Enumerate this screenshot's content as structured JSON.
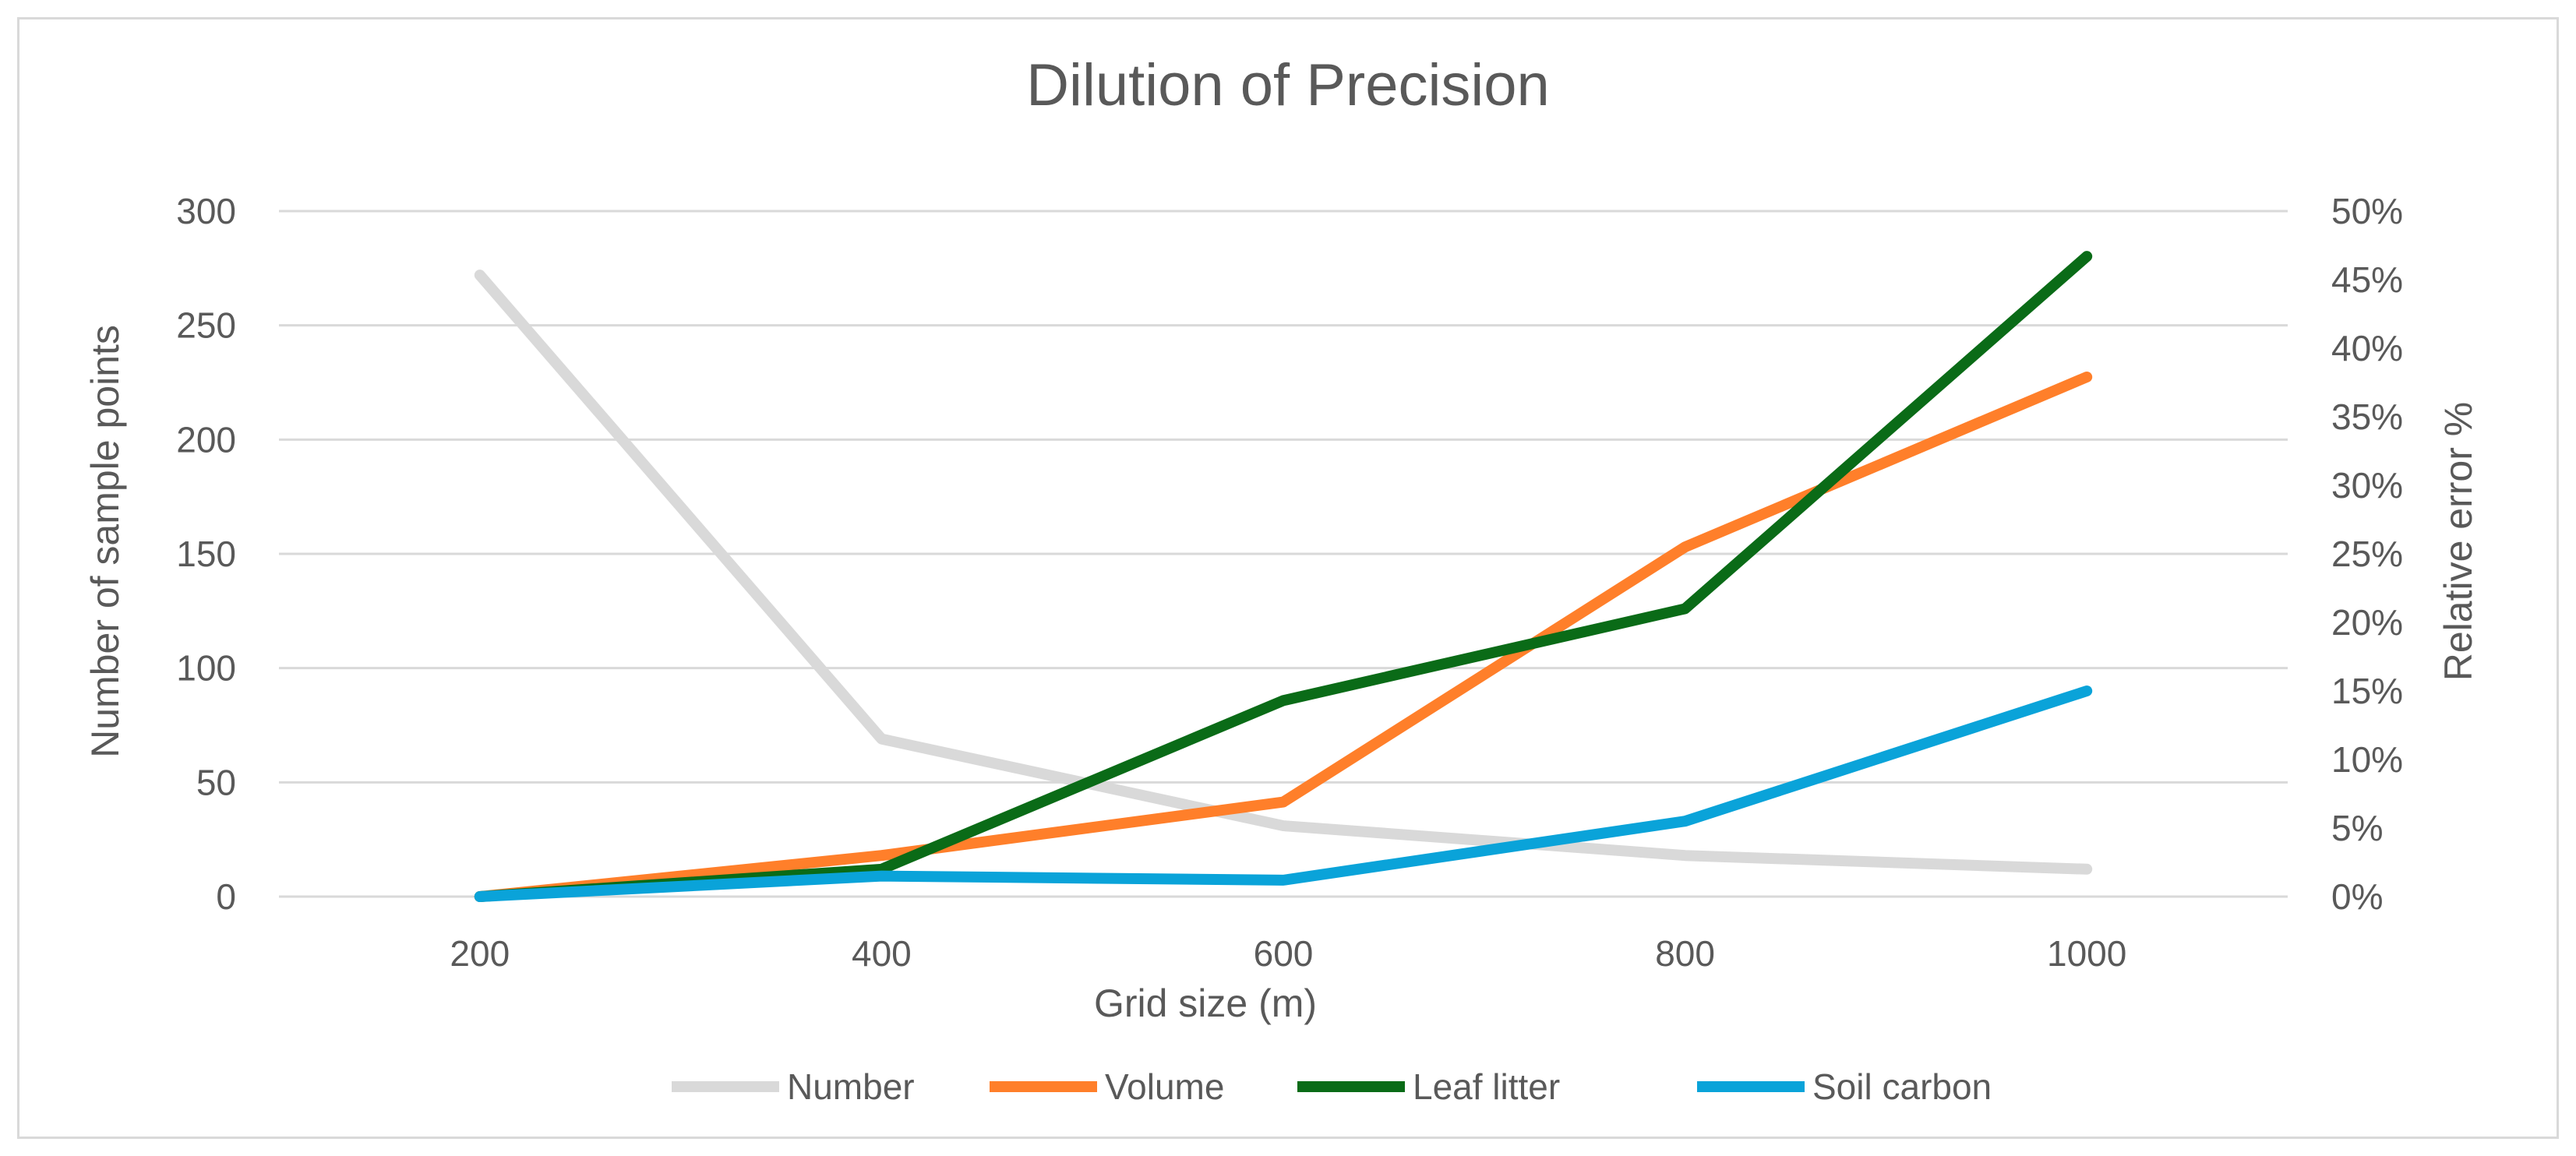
{
  "chart_data": {
    "type": "line",
    "title": "Dilution of Precision",
    "xlabel": "Grid size (m)",
    "ylabel": "Number of sample points",
    "y2label": "Relative error %",
    "categories": [
      "200",
      "400",
      "600",
      "800",
      "1000"
    ],
    "ylim": [
      0,
      300
    ],
    "y_ticks": [
      "0",
      "50",
      "100",
      "150",
      "200",
      "250",
      "300"
    ],
    "y2lim": [
      0,
      50
    ],
    "y2_ticks": [
      "0%",
      "5%",
      "10%",
      "15%",
      "20%",
      "25%",
      "30%",
      "35%",
      "40%",
      "45%",
      "50%"
    ],
    "grid": true,
    "legend_position": "bottom",
    "series": [
      {
        "name": "Number",
        "axis": "left",
        "color": "#d9d9d9",
        "values": [
          272,
          69,
          31,
          18,
          12
        ]
      },
      {
        "name": "Volume",
        "axis": "right",
        "color": "#ff7f2a",
        "values": [
          0,
          3.0,
          6.9,
          25.5,
          37.9
        ]
      },
      {
        "name": "Leaf litter",
        "axis": "right",
        "color": "#0a6b17",
        "values": [
          0,
          2.0,
          14.3,
          21.0,
          46.7
        ]
      },
      {
        "name": "Soil carbon",
        "axis": "right",
        "color": "#0aa3d9",
        "values": [
          0,
          1.5,
          1.2,
          5.5,
          15.0
        ]
      }
    ]
  }
}
